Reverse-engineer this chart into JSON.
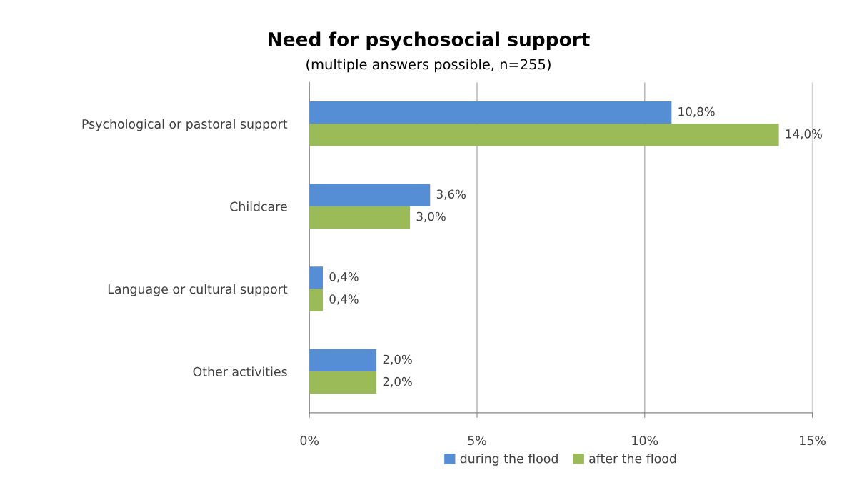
{
  "chart_data": {
    "type": "bar",
    "orientation": "horizontal",
    "title": "Need for psychosocial support",
    "subtitle": "(multiple answers possible, n=255)",
    "categories": [
      "Psychological or pastoral support",
      "Childcare",
      "Language or cultural support",
      "Other activities"
    ],
    "series": [
      {
        "name": "during the flood",
        "color": "#558ed5",
        "values": [
          10.8,
          3.6,
          0.4,
          2.0
        ],
        "value_labels": [
          "10,8%",
          "3,6%",
          "0,4%",
          "2,0%"
        ]
      },
      {
        "name": "after the flood",
        "color": "#9bbb59",
        "values": [
          14.0,
          3.0,
          0.4,
          2.0
        ],
        "value_labels": [
          "14,0%",
          "3,0%",
          "0,4%",
          "2,0%"
        ]
      }
    ],
    "xlim": [
      0,
      15
    ],
    "xticks": [
      {
        "value": 0,
        "label": "0%"
      },
      {
        "value": 5,
        "label": "5%"
      },
      {
        "value": 10,
        "label": "10%"
      },
      {
        "value": 15,
        "label": "15%"
      }
    ],
    "grid": "x",
    "legend": "bottom"
  }
}
